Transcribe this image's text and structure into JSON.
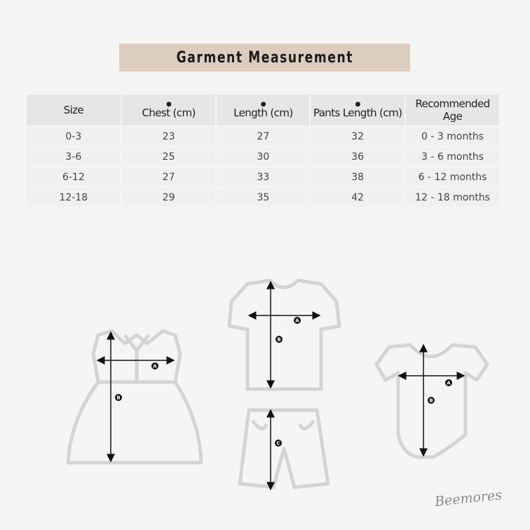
{
  "title": "Garment Measurement",
  "table": {
    "headers": [
      {
        "marker": "",
        "label": "Size"
      },
      {
        "marker": "A",
        "label": "Chest (cm)"
      },
      {
        "marker": "B",
        "label": "Length (cm)"
      },
      {
        "marker": "C",
        "label": "Pants Length (cm)"
      },
      {
        "marker": "",
        "label": "Recommended Age"
      }
    ],
    "rows": [
      [
        "0-3",
        "23",
        "27",
        "32",
        "0 - 3 months"
      ],
      [
        "3-6",
        "25",
        "30",
        "36",
        "3 - 6 months"
      ],
      [
        "6-12",
        "27",
        "33",
        "38",
        "6 - 12 months"
      ],
      [
        "12-18",
        "29",
        "35",
        "42",
        "12 - 18 months"
      ]
    ]
  },
  "diagram_labels": {
    "a": "A",
    "b": "B",
    "c": "C"
  },
  "brand": "Beemores",
  "colors": {
    "title_bar": "#ddcdbf",
    "outline": "#d4d4d4",
    "background": "#f5f5f5"
  }
}
